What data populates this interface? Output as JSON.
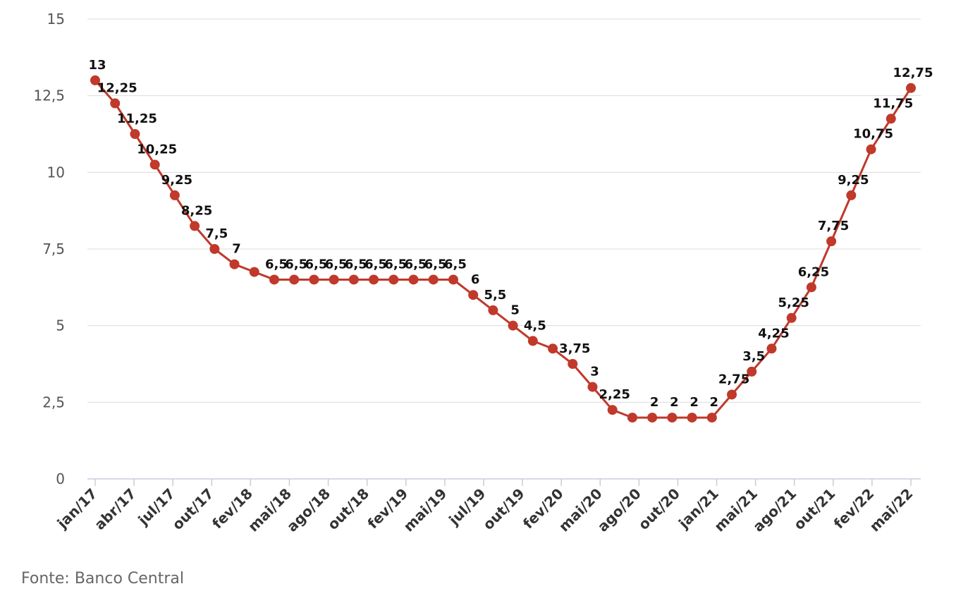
{
  "source": "Fonte: Banco Central",
  "colors": {
    "line": "#c0392b",
    "grid": "#dcdcdc",
    "axis": "#c8cbe0"
  },
  "chart_data": {
    "type": "line",
    "title": "",
    "xlabel": "",
    "ylabel": "",
    "ylim": [
      0,
      15
    ],
    "yticks": [
      "0",
      "2,5",
      "5",
      "7,5",
      "10",
      "12,5",
      "15"
    ],
    "grid": true,
    "legend": "none",
    "x_tick_labels": [
      "jan/17",
      "abr/17",
      "jul/17",
      "out/17",
      "fev/18",
      "mai/18",
      "ago/18",
      "out/18",
      "fev/19",
      "mai/19",
      "jul/19",
      "out/19",
      "fev/20",
      "mai/20",
      "ago/20",
      "out/20",
      "jan/21",
      "mai/21",
      "ago/21",
      "out/21",
      "fev/22",
      "mai/22"
    ],
    "series": [
      {
        "values": [
          13,
          12.25,
          11.25,
          10.25,
          9.25,
          8.25,
          7.5,
          7,
          6.75,
          6.5,
          6.5,
          6.5,
          6.5,
          6.5,
          6.5,
          6.5,
          6.5,
          6.5,
          6.5,
          6,
          5.5,
          5,
          4.5,
          4.25,
          3.75,
          3,
          2.25,
          2,
          2,
          2,
          2,
          2,
          2.75,
          3.5,
          4.25,
          5.25,
          6.25,
          7.75,
          9.25,
          10.75,
          11.75,
          12.75
        ],
        "labels": [
          "13",
          "12,25",
          "11,25",
          "10,25",
          "9,25",
          "8,25",
          "7,5",
          "7",
          "",
          "6,5",
          "6,5",
          "6,5",
          "6,5",
          "6,5",
          "6,5",
          "6,5",
          "6,5",
          "6,5",
          "6,5",
          "6",
          "5,5",
          "5",
          "4,5",
          "",
          "3,75",
          "3",
          "2,25",
          "",
          "2",
          "2",
          "2",
          "2",
          "2,75",
          "3,5",
          "4,25",
          "5,25",
          "6,25",
          "7,75",
          "9,25",
          "10,75",
          "11,75",
          "12,75"
        ]
      }
    ]
  }
}
